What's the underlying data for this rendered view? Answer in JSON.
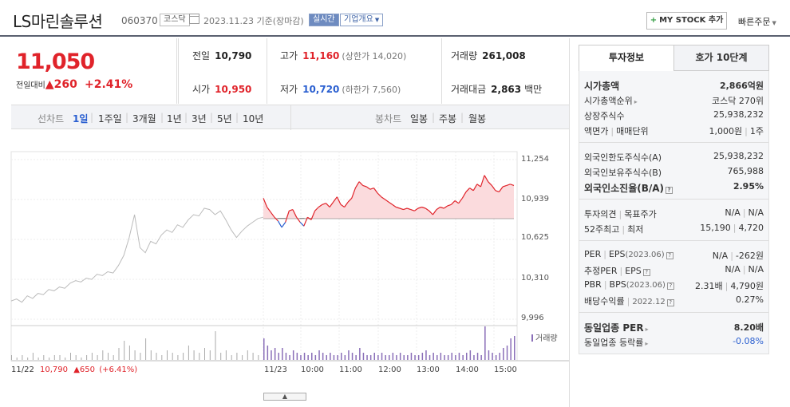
{
  "header": {
    "stock_name": "LS마린솔루션",
    "stock_code": "060370",
    "market": "코스닥",
    "date_text": "2023.11.23 기준(장마감)",
    "live_label": "실시간",
    "company_label": "기업개요",
    "mystock_label": "MY STOCK 추가",
    "quick_order_label": "빠른주문"
  },
  "price": {
    "current": "11,050",
    "change_label": "전일대비",
    "change_value": "260",
    "change_pct": "+2.41%"
  },
  "info": {
    "prev_label": "전일",
    "prev_value": "10,790",
    "high_label": "고가",
    "high_value": "11,160",
    "upper_limit": "(상한가 14,020)",
    "volume_label": "거래량",
    "volume_value": "261,008",
    "open_label": "시가",
    "open_value": "10,950",
    "low_label": "저가",
    "low_value": "10,720",
    "lower_limit": "(하한가 7,560)",
    "amount_label": "거래대금",
    "amount_value": "2,863",
    "amount_unit": "백만"
  },
  "period_bar": {
    "line_label": "선차트",
    "periods": [
      "1일",
      "1주일",
      "3개월",
      "1년",
      "3년",
      "5년",
      "10년"
    ],
    "selected": "1일",
    "candle_label": "봉차트",
    "candles": [
      "일봉",
      "주봉",
      "월봉"
    ]
  },
  "chart_data": {
    "type": "line",
    "y_ticks": [
      "11,254",
      "10,939",
      "10,625",
      "10,310",
      "9,996"
    ],
    "ylim": [
      9996,
      11254
    ],
    "x_ticks": [
      "11/22",
      "11/23",
      "10:00",
      "11:00",
      "12:00",
      "13:00",
      "14:00",
      "15:00"
    ],
    "prev_close": 10790,
    "prev_day_summary": {
      "date": "11/22",
      "close": "10,790",
      "change": "650",
      "change_pct": "(+6.41%)"
    },
    "volume_label": "거래량",
    "series": [
      {
        "values_prev_day": [
          10140,
          10155,
          10130,
          10180,
          10160,
          10200,
          10190,
          10230,
          10220,
          10250,
          10240,
          10280,
          10300,
          10290,
          10320,
          10310,
          10350,
          10340,
          10370,
          10360,
          10420,
          10500,
          10640,
          10820,
          10560,
          10520,
          10610,
          10590,
          10660,
          10700,
          10680,
          10740,
          10720,
          10780,
          10820,
          10810,
          10870,
          10860,
          10820,
          10850,
          10780,
          10700,
          10640,
          10690,
          10730,
          10760,
          10790,
          10800
        ],
        "values_today": [
          10950,
          10880,
          10840,
          10800,
          10770,
          10720,
          10760,
          10850,
          10860,
          10800,
          10760,
          10730,
          10800,
          10780,
          10850,
          10880,
          10900,
          10910,
          10880,
          10920,
          10960,
          10900,
          10880,
          10920,
          10950,
          11030,
          11080,
          11050,
          11040,
          11020,
          11030,
          10990,
          10960,
          10940,
          10920,
          10900,
          10880,
          10870,
          10860,
          10870,
          10860,
          10850,
          10870,
          10880,
          10870,
          10850,
          10820,
          10860,
          10880,
          10870,
          10890,
          10900,
          10930,
          10910,
          10950,
          11000,
          11030,
          11010,
          11060,
          11040,
          11130,
          11080,
          11050,
          11010,
          11000,
          11040,
          11050,
          11060,
          11050
        ]
      }
    ],
    "volume_prev_day": [
      2,
      1,
      2,
      1,
      3,
      1,
      2,
      1,
      2,
      2,
      1,
      3,
      2,
      1,
      2,
      3,
      2,
      4,
      3,
      2,
      5,
      8,
      6,
      4,
      3,
      9,
      4,
      3,
      2,
      4,
      3,
      2,
      3,
      6,
      4,
      3,
      5,
      4,
      12,
      3,
      4,
      2,
      3,
      2,
      4,
      3,
      2,
      5
    ],
    "volume_today": [
      9,
      6,
      4,
      5,
      3,
      5,
      3,
      2,
      4,
      3,
      2,
      3,
      2,
      3,
      2,
      4,
      3,
      2,
      3,
      2,
      2,
      3,
      2,
      4,
      3,
      2,
      5,
      3,
      2,
      2,
      3,
      2,
      3,
      2,
      2,
      3,
      2,
      3,
      2,
      2,
      3,
      2,
      2,
      3,
      4,
      2,
      3,
      2,
      3,
      2,
      2,
      3,
      2,
      3,
      2,
      3,
      4,
      2,
      3,
      2,
      14,
      4,
      3,
      2,
      3,
      5,
      6,
      9,
      10
    ]
  },
  "tabs": {
    "invest": "투자정보",
    "orderbook": "호가 10단계"
  },
  "invest": {
    "market_cap_label": "시가총액",
    "market_cap_value": "2,866억원",
    "market_cap_rank_label": "시가총액순위",
    "market_cap_rank_value": "코스닥 270위",
    "shares_label": "상장주식수",
    "shares_value": "25,938,232",
    "facevalue_label": "액면가",
    "trade_unit_label": "매매단위",
    "facevalue_value": "1,000원",
    "trade_unit_value": "1주",
    "foreign_limit_label": "외국인한도주식수(A)",
    "foreign_limit_value": "25,938,232",
    "foreign_hold_label": "외국인보유주식수(B)",
    "foreign_hold_value": "765,988",
    "foreign_ratio_label": "외국인소진율(B/A)",
    "foreign_ratio_value": "2.95%",
    "opinion_label": "투자의견",
    "target_label": "목표주가",
    "opinion_value": "N/A",
    "target_value": "N/A",
    "high52_label": "52주최고",
    "low52_label": "최저",
    "high52_value": "15,190",
    "low52_value": "4,720",
    "per_label": "PER",
    "eps_label": "EPS",
    "period_label": "(2023.06)",
    "per_value": "N/A",
    "eps_value": "-262원",
    "est_per_label": "추정PER",
    "est_eps_label": "EPS",
    "est_per_value": "N/A",
    "est_eps_value": "N/A",
    "pbr_label": "PBR",
    "bps_label": "BPS",
    "pbr_value": "2.31배",
    "bps_value": "4,790원",
    "dividend_label": "배당수익률",
    "dividend_period": "2022.12",
    "dividend_value": "0.27%",
    "industry_per_label": "동일업종 PER",
    "industry_per_value": "8.20배",
    "industry_change_label": "동일업종 등락률",
    "industry_change_value": "-0.08%"
  }
}
